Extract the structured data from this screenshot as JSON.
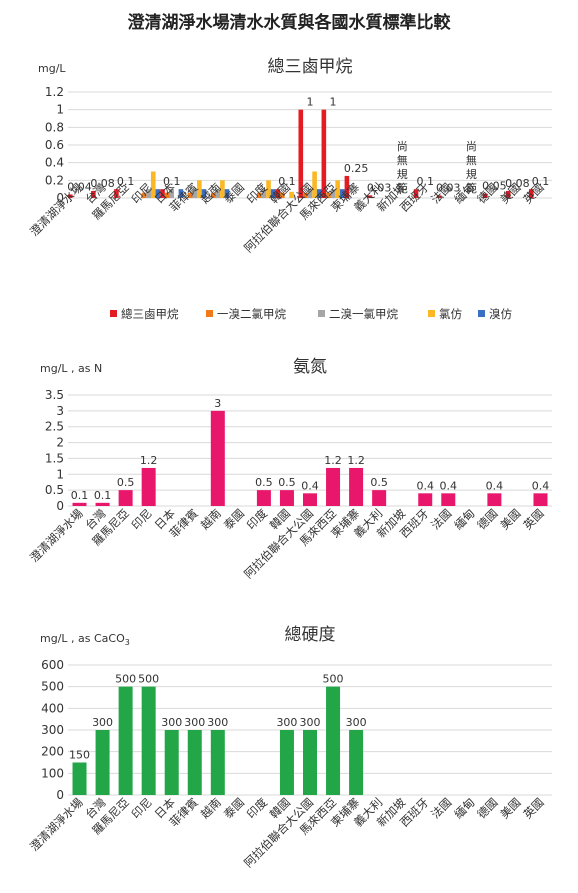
{
  "page_title": "澄清湖淨水場清水水質與各國水質標準比較",
  "categories": [
    "澄清湖淨水場",
    "台灣",
    "羅馬尼亞",
    "印尼",
    "日本",
    "菲律賓",
    "越南",
    "泰國",
    "印度",
    "韓國",
    "阿拉伯聯合大公國",
    "馬來西亞",
    "柬埔寨",
    "義大利",
    "新加坡",
    "西班牙",
    "法國",
    "緬甸",
    "德國",
    "美國",
    "英國"
  ],
  "chart_data": [
    {
      "type": "bar",
      "title": "總三鹵甲烷",
      "ylabel": "mg/L",
      "ylim": [
        0,
        1.2
      ],
      "yticks": [
        "0",
        "0.2",
        "0.4",
        "0.6",
        "0.8",
        "1",
        "1.2"
      ],
      "grid": true,
      "legend_position": "bottom",
      "series": [
        {
          "name": "總三鹵甲烷",
          "color": "#e31b23",
          "values": [
            0.04,
            0.08,
            0.1,
            null,
            0.1,
            null,
            null,
            null,
            null,
            0.1,
            1,
            1,
            0.25,
            0.03,
            null,
            0.1,
            0.03,
            null,
            0.05,
            0.08,
            0.1
          ]
        },
        {
          "name": "一溴二氯甲烷",
          "color": "#f07a1a",
          "values": [
            null,
            null,
            null,
            0.06,
            0.06,
            0.06,
            0.06,
            null,
            0.06,
            0.06,
            0.06,
            0.06,
            null,
            null,
            null,
            null,
            null,
            null,
            null,
            null,
            null
          ]
        },
        {
          "name": "二溴一氯甲烷",
          "color": "#a6a6a6",
          "values": [
            null,
            null,
            null,
            0.1,
            0.1,
            0.1,
            0.1,
            null,
            0.1,
            null,
            0.1,
            0.1,
            null,
            null,
            null,
            null,
            null,
            null,
            null,
            null,
            null
          ]
        },
        {
          "name": "氯仿",
          "color": "#fbb724",
          "values": [
            null,
            null,
            null,
            0.3,
            null,
            0.2,
            0.2,
            null,
            0.2,
            0.07,
            0.3,
            0.2,
            null,
            null,
            null,
            null,
            null,
            null,
            null,
            null,
            null
          ]
        },
        {
          "name": "溴仿",
          "color": "#3a6fc4",
          "values": [
            null,
            null,
            null,
            0.1,
            0.1,
            0.1,
            0.1,
            null,
            0.1,
            null,
            0.1,
            0.1,
            null,
            null,
            null,
            null,
            null,
            null,
            null,
            null,
            null
          ]
        }
      ],
      "data_labels": [
        "0.04",
        "0.08",
        "0.1",
        null,
        "0.1",
        null,
        null,
        null,
        null,
        "0.1",
        "1",
        "1",
        "0.25",
        "0.03",
        "尚無規範",
        "0.1",
        "0.03",
        "尚無規範",
        "0.05",
        "0.08",
        "0.1"
      ]
    },
    {
      "type": "bar",
      "title": "氨氮",
      "ylabel": "mg/L , as N",
      "ylim": [
        0,
        3.5
      ],
      "yticks": [
        "0",
        "0.5",
        "1",
        "1.5",
        "2",
        "2.5",
        "3",
        "3.5"
      ],
      "grid": true,
      "series": [
        {
          "color": "#e8176c",
          "values": [
            0.1,
            0.1,
            0.5,
            1.2,
            null,
            null,
            3,
            null,
            0.5,
            0.5,
            0.4,
            1.2,
            1.2,
            0.5,
            null,
            0.4,
            0.4,
            null,
            0.4,
            null,
            0.4
          ]
        }
      ],
      "data_labels": [
        "0.1",
        "0.1",
        "0.5",
        "1.2",
        null,
        null,
        "3",
        null,
        "0.5",
        "0.5",
        "0.4",
        "1.2",
        "1.2",
        "0.5",
        null,
        "0.4",
        "0.4",
        null,
        "0.4",
        null,
        "0.4"
      ]
    },
    {
      "type": "bar",
      "title": "總硬度",
      "ylabel": "mg/L , as CaCO",
      "ylabel_sub": "3",
      "ylim": [
        0,
        600
      ],
      "yticks": [
        "0",
        "100",
        "200",
        "300",
        "400",
        "500",
        "600"
      ],
      "grid": true,
      "series": [
        {
          "color": "#22a648",
          "values": [
            150,
            300,
            500,
            500,
            300,
            300,
            300,
            null,
            null,
            300,
            300,
            500,
            300,
            null,
            null,
            null,
            null,
            null,
            null,
            null,
            null
          ]
        }
      ],
      "data_labels": [
        "150",
        "300",
        "500",
        "500",
        "300",
        "300",
        "300",
        null,
        null,
        "300",
        "300",
        "500",
        "300",
        null,
        null,
        null,
        null,
        null,
        null,
        null,
        null
      ]
    }
  ]
}
